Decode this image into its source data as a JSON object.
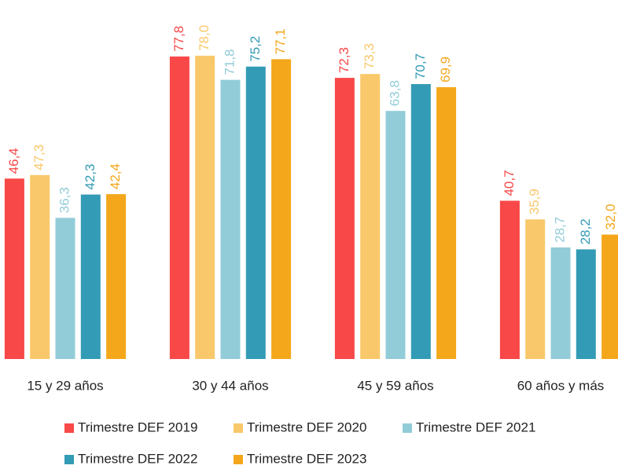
{
  "chart_data": {
    "type": "bar",
    "categories": [
      "15 y 29 años",
      "30 y 44 años",
      "45 y 59 años",
      "60 años y más"
    ],
    "series": [
      {
        "name": "Trimestre DEF 2019",
        "color": "#f84848",
        "values": [
          46.4,
          77.8,
          72.3,
          40.7
        ],
        "value_labels": [
          "46,4",
          "77,8",
          "72,3",
          "40,7"
        ]
      },
      {
        "name": "Trimestre DEF 2020",
        "color": "#f9c86a",
        "values": [
          47.3,
          78.0,
          73.3,
          35.9
        ],
        "value_labels": [
          "47,3",
          "78,0",
          "73,3",
          "35,9"
        ]
      },
      {
        "name": "Trimestre DEF 2021",
        "color": "#92ccd8",
        "values": [
          36.3,
          71.8,
          63.8,
          28.7
        ],
        "value_labels": [
          "36,3",
          "71,8",
          "63,8",
          "28,7"
        ]
      },
      {
        "name": "Trimestre DEF 2022",
        "color": "#339bb5",
        "values": [
          42.3,
          75.2,
          70.7,
          28.2
        ],
        "value_labels": [
          "42,3",
          "75,2",
          "70,7",
          "28,2"
        ]
      },
      {
        "name": "Trimestre DEF 2023",
        "color": "#f4a71b",
        "values": [
          42.4,
          77.1,
          69.9,
          32.0
        ],
        "value_labels": [
          "42,4",
          "77,1",
          "69,9",
          "32,0"
        ]
      }
    ],
    "ylim": [
      0,
      80
    ]
  }
}
